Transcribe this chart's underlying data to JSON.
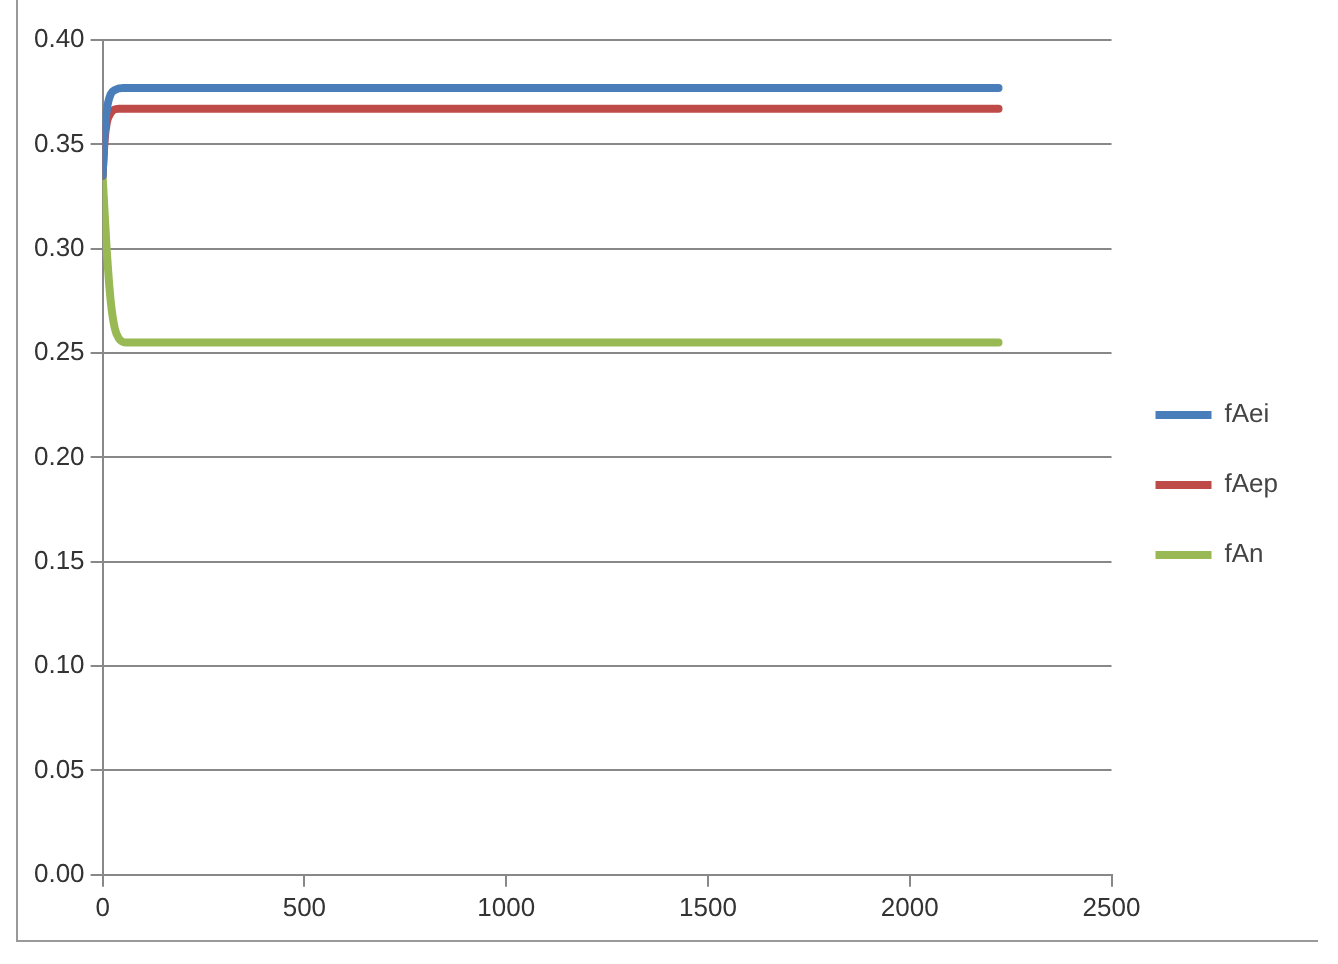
{
  "chart_data": {
    "type": "line",
    "xlim": [
      0,
      2500
    ],
    "xticks": [
      0,
      500,
      1000,
      1500,
      2000,
      2500
    ],
    "ylim": [
      0,
      0.4
    ],
    "yticks": [
      {
        "value": 0,
        "label": "0.00"
      },
      {
        "value": 0.05,
        "label": "0.05"
      },
      {
        "value": 0.1,
        "label": "0.10"
      },
      {
        "value": 0.15,
        "label": "0.15"
      },
      {
        "value": 0.2,
        "label": "0.20"
      },
      {
        "value": 0.25,
        "label": "0.25"
      },
      {
        "value": 0.3,
        "label": "0.30"
      },
      {
        "value": 0.35,
        "label": "0.35"
      },
      {
        "value": 0.4,
        "label": "0.40"
      }
    ],
    "grid": "y",
    "legend": "right",
    "marker": "none",
    "series": [
      {
        "name": "fAei",
        "color": "#4a7ebb",
        "x": [
          0,
          5,
          10,
          20,
          30,
          50,
          2220
        ],
        "values": [
          0.335,
          0.355,
          0.366,
          0.374,
          0.376,
          0.377,
          0.377
        ]
      },
      {
        "name": "fAep",
        "color": "#be4b48",
        "x": [
          0,
          5,
          10,
          20,
          40,
          2220
        ],
        "values": [
          0.335,
          0.352,
          0.36,
          0.365,
          0.367,
          0.367
        ]
      },
      {
        "name": "fAn",
        "color": "#98b954",
        "x": [
          0,
          10,
          20,
          30,
          40,
          60,
          2220
        ],
        "values": [
          0.335,
          0.3,
          0.275,
          0.262,
          0.257,
          0.255,
          0.255
        ]
      }
    ]
  }
}
